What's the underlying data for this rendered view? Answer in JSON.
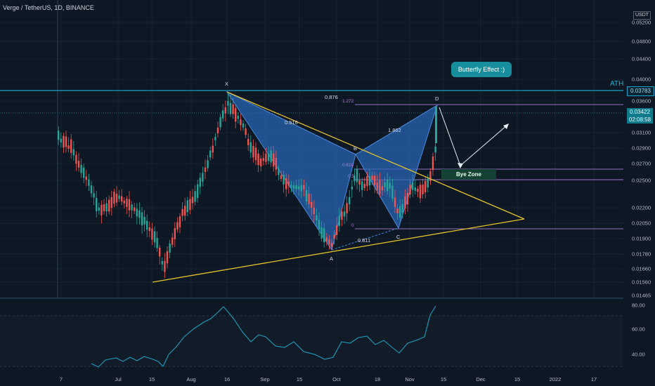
{
  "header": {
    "symbol": "Verge / TetherUS, 1D, BINANCE"
  },
  "price_axis": {
    "currency": "USDT",
    "ticks": [
      "0.05200",
      "0.04800",
      "0.04400",
      "0.04000",
      "0.03600",
      "0.03100",
      "0.02900",
      "0.02700",
      "0.02500",
      "0.02200",
      "0.02050",
      "0.01900",
      "0.01780",
      "0.01660",
      "0.01560",
      "0.01465"
    ],
    "ath_price": "0.03783",
    "current_price": "0.03422",
    "countdown": "02:08:58"
  },
  "rsi_axis": {
    "ticks": [
      "80.00",
      "60.00",
      "40.00"
    ]
  },
  "time_axis": {
    "ticks": [
      "7",
      "Jul",
      "15",
      "Aug",
      "16",
      "Sep",
      "15",
      "Oct",
      "18",
      "Nov",
      "15",
      "Dec",
      "15",
      "2022",
      "17"
    ]
  },
  "annotations": {
    "ath": "ATH",
    "callout": "Butterfly Effect :)",
    "bye_zone": "Bye Zone",
    "point_x": "X",
    "point_a": "A",
    "point_b": "B",
    "point_c": "C",
    "point_d": "D",
    "ratio_xb": "0.516",
    "ratio_bd": "1.862",
    "ratio_ac": "0.811",
    "ratio_xd": "0.876",
    "fib_1272": "1.272",
    "fib_618": "0.618",
    "fib_5": "0.5",
    "fib_0": "0"
  },
  "chart_data": {
    "type": "candlestick",
    "symbol": "XVG/USDT",
    "timeframe": "1D",
    "exchange": "BINANCE",
    "harmonic_pattern": {
      "name": "Butterfly",
      "X": 0.0378,
      "A": 0.0181,
      "B": 0.0282,
      "C": 0.02,
      "D": 0.0362,
      "ratios": {
        "XB": 0.516,
        "BD": 1.862,
        "AC": 0.811,
        "XD": 0.876
      }
    },
    "fib_levels": [
      {
        "label": "1.272",
        "price": 0.0357
      },
      {
        "label": "0.618",
        "price": 0.0265
      },
      {
        "label": "0.5",
        "price": 0.025
      },
      {
        "label": "0",
        "price": 0.0203
      }
    ],
    "triangle": {
      "upper_from": 0.0378,
      "lower_from": 0.0158,
      "apex": 0.0212
    },
    "rsi": {
      "ticks": [
        80,
        60,
        40
      ],
      "latest": 80
    }
  }
}
